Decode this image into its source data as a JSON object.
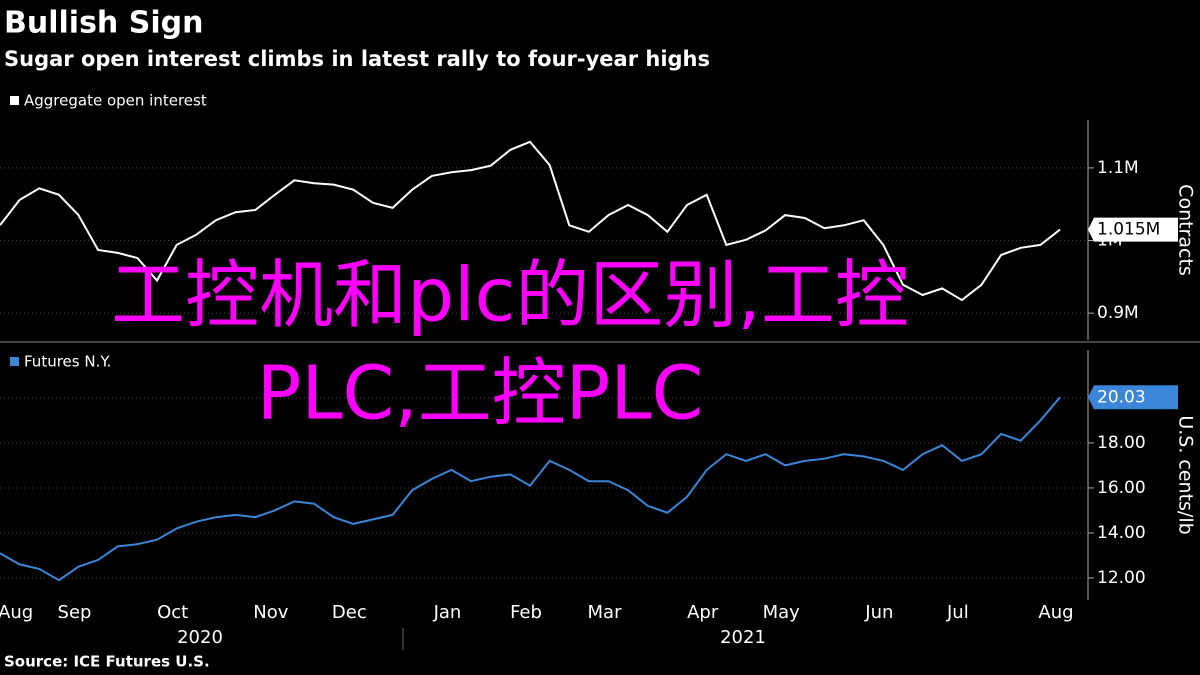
{
  "title": "Bullish Sign",
  "subtitle": "Sugar open interest climbs in latest rally to four-year highs",
  "source": "Source: ICE Futures U.S.",
  "overlay": [
    "工控机和plc的区别,工控",
    "PLC,工控PLC"
  ],
  "chart_data": [
    {
      "type": "line",
      "series": [
        {
          "name": "Aggregate open interest",
          "color": "#ffffff",
          "values": [
            1021000,
            1056000,
            1072000,
            1063000,
            1035000,
            987000,
            983000,
            976000,
            945000,
            994000,
            1008000,
            1028000,
            1039000,
            1042000,
            1063000,
            1083000,
            1079000,
            1077000,
            1070000,
            1052000,
            1045000,
            1070000,
            1089000,
            1094000,
            1097000,
            1103000,
            1125000,
            1136000,
            1104000,
            1021000,
            1012000,
            1035000,
            1049000,
            1035000,
            1012000,
            1049000,
            1063000,
            994000,
            1001000,
            1014000,
            1035000,
            1031000,
            1017000,
            1021000,
            1028000,
            994000,
            939000,
            925000,
            934000,
            918000,
            939000,
            980000,
            990000,
            994000,
            1015000
          ]
        }
      ],
      "ylim": [
        863000,
        1166000
      ],
      "yticks": [
        {
          "value": 900000,
          "label": "0.9M"
        },
        {
          "value": 1000000,
          "label": "1M"
        },
        {
          "value": 1100000,
          "label": "1.1M"
        }
      ],
      "y_axis_label": "Contracts",
      "last_label": {
        "value": 1015000,
        "label": "1.015M"
      },
      "grid": true
    },
    {
      "type": "line",
      "series": [
        {
          "name": "Futures N.Y.",
          "color": "#3b86d8",
          "values": [
            13.1,
            12.6,
            12.4,
            11.9,
            12.5,
            12.8,
            13.4,
            13.5,
            13.7,
            14.2,
            14.5,
            14.7,
            14.8,
            14.7,
            15.0,
            15.4,
            15.3,
            14.7,
            14.4,
            14.6,
            14.8,
            15.9,
            16.4,
            16.8,
            16.3,
            16.5,
            16.6,
            16.1,
            17.2,
            16.8,
            16.3,
            16.3,
            15.9,
            15.2,
            14.9,
            15.6,
            16.8,
            17.5,
            17.2,
            17.5,
            17.0,
            17.2,
            17.3,
            17.5,
            17.4,
            17.2,
            16.8,
            17.5,
            17.9,
            17.2,
            17.5,
            18.4,
            18.1,
            19.0,
            20.03
          ]
        }
      ],
      "categories": [
        null,
        "Aug",
        null,
        null,
        "Sep",
        null,
        null,
        null,
        null,
        "Oct",
        null,
        null,
        null,
        null,
        "Nov",
        null,
        null,
        null,
        "Dec",
        null,
        null,
        null,
        null,
        "Jan",
        null,
        null,
        null,
        "Feb",
        null,
        null,
        null,
        "Mar",
        null,
        null,
        null,
        null,
        "Apr",
        null,
        null,
        null,
        "May",
        null,
        null,
        null,
        null,
        "Jun",
        null,
        null,
        null,
        "Jul",
        null,
        null,
        null,
        null,
        "Aug"
      ],
      "year_labels": [
        "2020",
        "2021"
      ],
      "ylim": [
        11.02,
        22.13
      ],
      "yticks": [
        {
          "value": 12,
          "label": "12.00"
        },
        {
          "value": 14,
          "label": "14.00"
        },
        {
          "value": 16,
          "label": "16.00"
        },
        {
          "value": 18,
          "label": "18.00"
        },
        {
          "value": 20,
          "label": "20.00"
        }
      ],
      "y_axis_label": "U.S. cents/lb",
      "last_label": {
        "value": 20.03,
        "label": "20.03"
      },
      "grid": true
    }
  ]
}
